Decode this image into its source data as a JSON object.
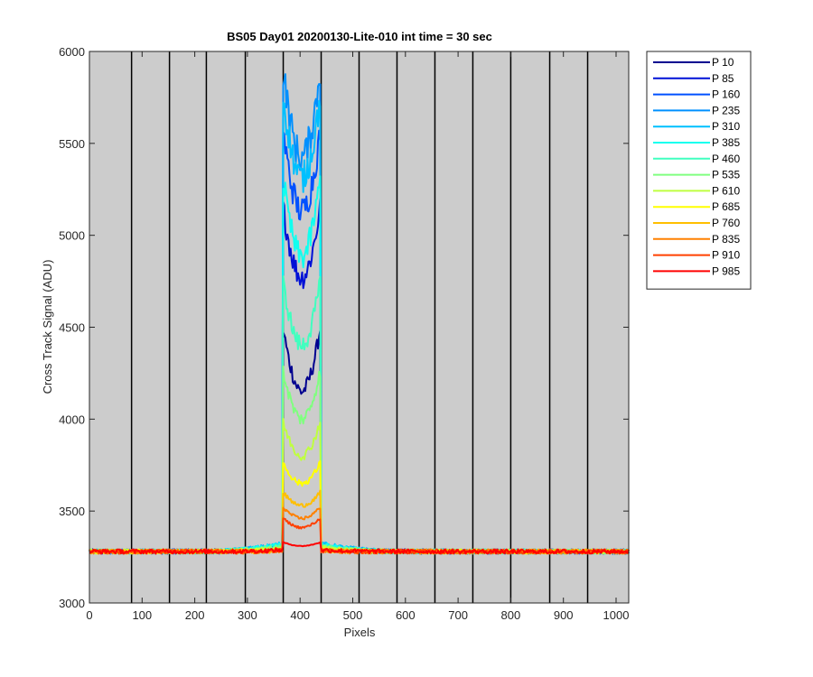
{
  "chart_data": {
    "type": "line",
    "title": "BS05 Day01 20200130-Lite-010 int time = 30 sec",
    "xlabel": "Pixels",
    "ylabel": "Cross Track Signal (ADU)",
    "xlim": [
      0,
      1024
    ],
    "ylim": [
      3000,
      6000
    ],
    "xticks": [
      0,
      100,
      200,
      300,
      400,
      500,
      600,
      700,
      800,
      900,
      1000
    ],
    "yticks": [
      3000,
      3500,
      4000,
      4500,
      5000,
      5500,
      6000
    ],
    "vertical_lines_x": [
      80,
      152,
      222,
      296,
      368,
      440,
      512,
      584,
      656,
      728,
      800,
      874,
      946
    ],
    "background_color": "#cccccc",
    "baseline": 3280,
    "peak_range": [
      368,
      438
    ],
    "legend_position": "outside-right",
    "series": [
      {
        "name": "P 10",
        "color": "#00008f",
        "edge": 4490,
        "dip": 4150,
        "baseline_offset": 0
      },
      {
        "name": "P 85",
        "color": "#0010d6",
        "edge": 5150,
        "dip": 4770,
        "baseline_offset": 5
      },
      {
        "name": "P 160",
        "color": "#0050ff",
        "edge": 5560,
        "dip": 5130,
        "baseline_offset": 10
      },
      {
        "name": "P 235",
        "color": "#0090ff",
        "edge": 5900,
        "dip": 5420,
        "baseline_offset": 20
      },
      {
        "name": "P 310",
        "color": "#00c0ff",
        "edge": 5760,
        "dip": 5310,
        "baseline_offset": 25
      },
      {
        "name": "P 385",
        "color": "#10ffef",
        "edge": 5300,
        "dip": 4880,
        "baseline_offset": 20
      },
      {
        "name": "P 460",
        "color": "#40ffbf",
        "edge": 4740,
        "dip": 4400,
        "baseline_offset": 15
      },
      {
        "name": "P 535",
        "color": "#80ff80",
        "edge": 4260,
        "dip": 4000,
        "baseline_offset": 10
      },
      {
        "name": "P 610",
        "color": "#bfff40",
        "edge": 3980,
        "dip": 3800,
        "baseline_offset": 5
      },
      {
        "name": "P 685",
        "color": "#ffff00",
        "edge": 3760,
        "dip": 3650,
        "baseline_offset": 0
      },
      {
        "name": "P 760",
        "color": "#ffbf00",
        "edge": 3600,
        "dip": 3530,
        "baseline_offset": -3
      },
      {
        "name": "P 835",
        "color": "#ff8000",
        "edge": 3520,
        "dip": 3460,
        "baseline_offset": -5
      },
      {
        "name": "P 910",
        "color": "#ff4000",
        "edge": 3460,
        "dip": 3410,
        "baseline_offset": -5
      },
      {
        "name": "P 985",
        "color": "#ff0000",
        "edge": 3330,
        "dip": 3310,
        "baseline_offset": 0
      }
    ]
  }
}
